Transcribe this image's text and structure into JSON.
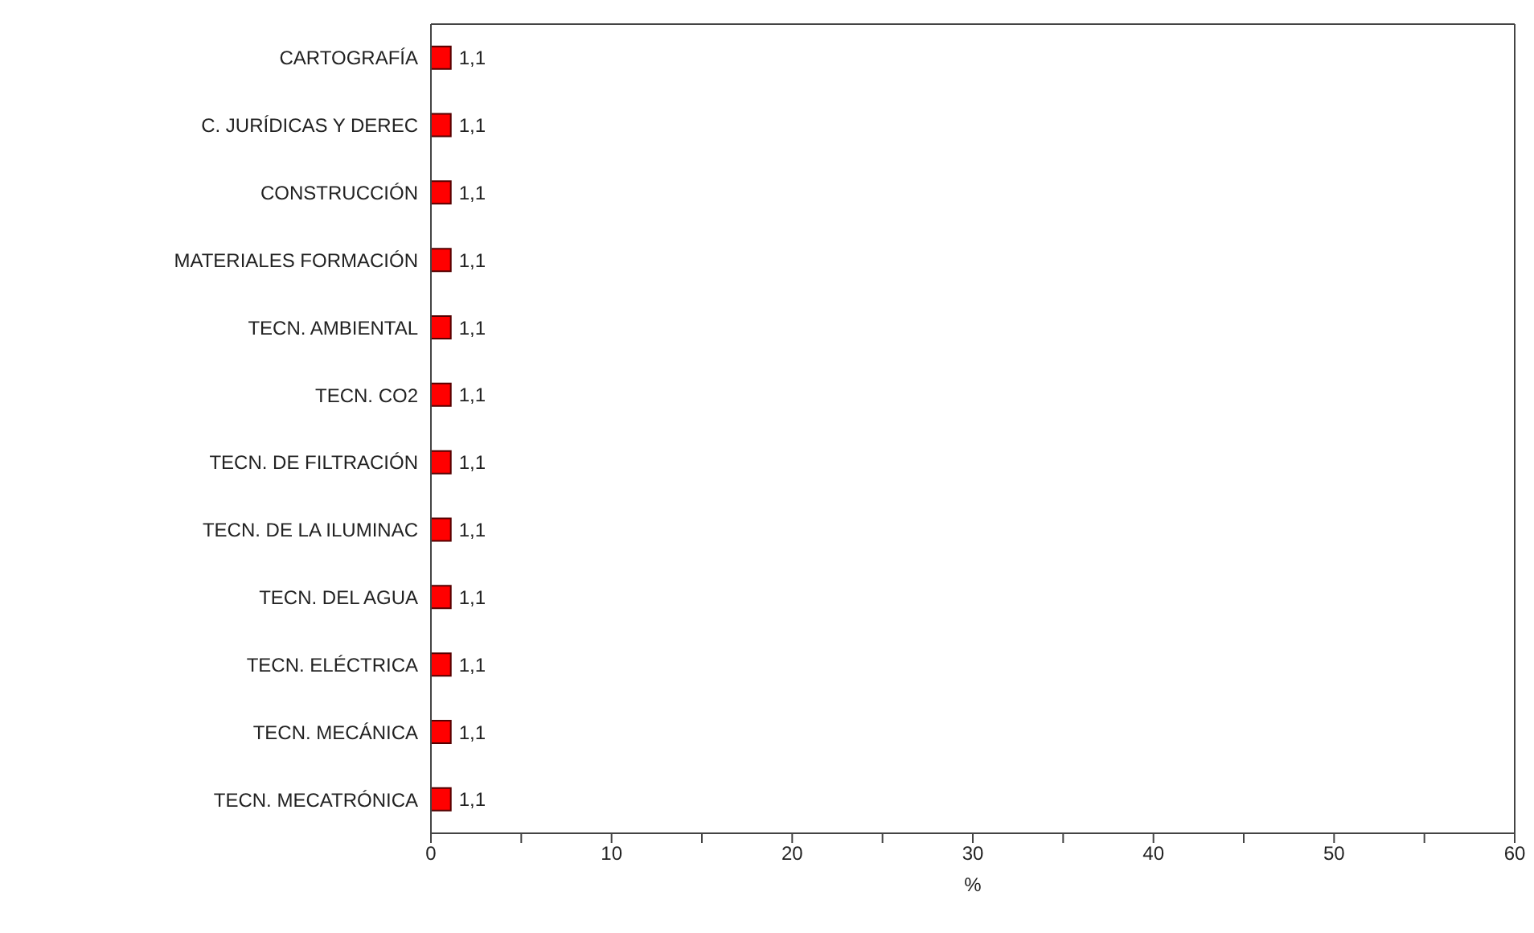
{
  "chart_data": {
    "type": "bar",
    "orientation": "horizontal",
    "xlabel": "%",
    "categories": [
      "CARTOGRAFÍA",
      "C. JURÍDICAS Y DEREC",
      "CONSTRUCCIÓN",
      "MATERIALES FORMACIÓN",
      "TECN. AMBIENTAL",
      "TECN. CO2",
      "TECN. DE FILTRACIÓN",
      "TECN. DE LA ILUMINAC",
      "TECN. DEL AGUA",
      "TECN. ELÉCTRICA",
      "TECN. MECÁNICA",
      "TECN. MECATRÓNICA"
    ],
    "values": [
      1.1,
      1.1,
      1.1,
      1.1,
      1.1,
      1.1,
      1.1,
      1.1,
      1.1,
      1.1,
      1.1,
      1.1
    ],
    "value_labels": [
      "1,1",
      "1,1",
      "1,1",
      "1,1",
      "1,1",
      "1,1",
      "1,1",
      "1,1",
      "1,1",
      "1,1",
      "1,1",
      "1,1"
    ],
    "color": "#ff0000",
    "xlim": [
      0,
      60
    ],
    "xticks": [
      0,
      {
        "value": 5,
        "label": null
      },
      10,
      {
        "value": 15,
        "label": null
      },
      20,
      {
        "value": 25,
        "label": null
      },
      30,
      {
        "value": 35,
        "label": null
      },
      40,
      {
        "value": 45,
        "label": null
      },
      50,
      {
        "value": 55,
        "label": null
      },
      60
    ],
    "grid": false
  }
}
